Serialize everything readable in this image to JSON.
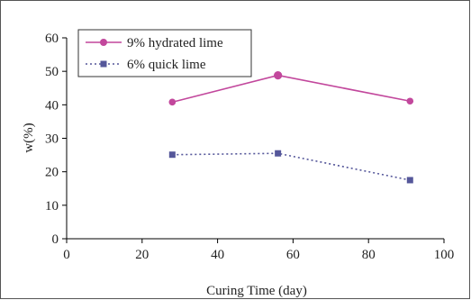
{
  "chart_data": {
    "type": "line",
    "title": "",
    "xlabel": "Curing Time (day)",
    "ylabel": "w(%)",
    "xlim": [
      0,
      100
    ],
    "ylim": [
      0,
      60
    ],
    "xticks": [
      0,
      20,
      40,
      60,
      80,
      100
    ],
    "yticks": [
      0,
      10,
      20,
      30,
      40,
      50,
      60
    ],
    "grid": false,
    "legend_position": "top-left",
    "series": [
      {
        "name": "9% hydrated lime",
        "color": "#c2479c",
        "line_style": "solid",
        "marker": "circle",
        "x": [
          28,
          56,
          91
        ],
        "y": [
          40.8,
          48.8,
          41.1
        ]
      },
      {
        "name": "6% quick lime",
        "color": "#55579a",
        "line_style": "dotted",
        "marker": "square",
        "x": [
          28,
          56,
          91
        ],
        "y": [
          25.1,
          25.5,
          17.5
        ]
      }
    ]
  }
}
